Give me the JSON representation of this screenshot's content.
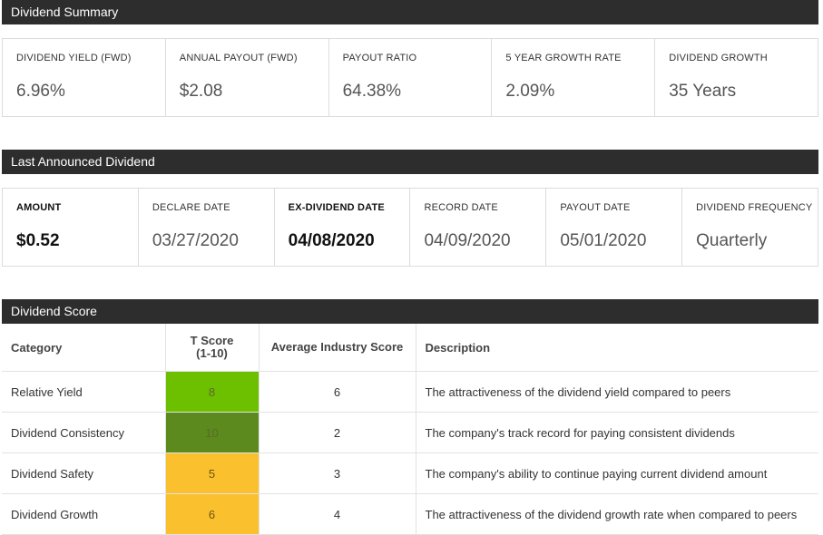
{
  "summary": {
    "title": "Dividend Summary",
    "stats": [
      {
        "label": "DIVIDEND YIELD (FWD)",
        "value": "6.96%"
      },
      {
        "label": "ANNUAL PAYOUT (FWD)",
        "value": "$2.08"
      },
      {
        "label": "PAYOUT RATIO",
        "value": "64.38%"
      },
      {
        "label": "5 YEAR GROWTH RATE",
        "value": "2.09%"
      },
      {
        "label": "DIVIDEND GROWTH",
        "value": "35 Years"
      }
    ]
  },
  "last_dividend": {
    "title": "Last Announced Dividend",
    "stats": [
      {
        "label": "AMOUNT",
        "value": "$0.52"
      },
      {
        "label": "DECLARE DATE",
        "value": "03/27/2020"
      },
      {
        "label": "EX-DIVIDEND DATE",
        "value": "04/08/2020"
      },
      {
        "label": "RECORD DATE",
        "value": "04/09/2020"
      },
      {
        "label": "PAYOUT DATE",
        "value": "05/01/2020"
      },
      {
        "label": "DIVIDEND FREQUENCY",
        "value": "Quarterly"
      }
    ]
  },
  "score": {
    "title": "Dividend Score",
    "headers": {
      "category": "Category",
      "t_score": "T Score",
      "t_score_range": "(1-10)",
      "industry": "Average Industry Score",
      "description": "Description"
    },
    "rows": [
      {
        "category": "Relative Yield",
        "t_score": "8",
        "industry": "6",
        "description": "The attractiveness of the dividend yield compared to peers",
        "color": "#6cc000"
      },
      {
        "category": "Dividend Consistency",
        "t_score": "10",
        "industry": "2",
        "description": "The company's track record for paying consistent dividends",
        "color": "#5c8a1e"
      },
      {
        "category": "Dividend Safety",
        "t_score": "5",
        "industry": "3",
        "description": "The company's ability to continue paying current dividend amount",
        "color": "#fbc02d"
      },
      {
        "category": "Dividend Growth",
        "t_score": "6",
        "industry": "4",
        "description": "The attractiveness of the dividend growth rate when compared to peers",
        "color": "#fbc02d"
      }
    ]
  },
  "icons": {
    "cursor": "hand-pointer-icon"
  }
}
